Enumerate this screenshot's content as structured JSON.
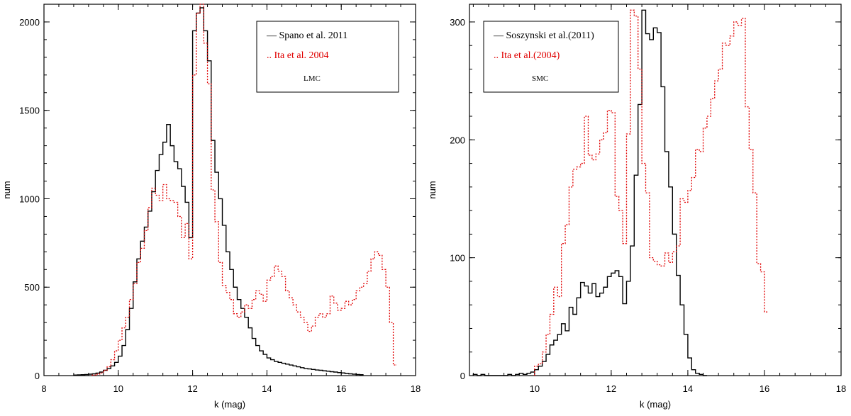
{
  "chart_data": [
    {
      "type": "line",
      "xlabel": "k (mag)",
      "ylabel": "num",
      "xlim": [
        8,
        18
      ],
      "ylim": [
        0,
        2100
      ],
      "xticks": [
        8,
        10,
        12,
        14,
        16,
        18
      ],
      "yticks": [
        0,
        500,
        1000,
        1500,
        2000
      ],
      "legend_position": "top-right",
      "legend_note": "LMC",
      "grid": false,
      "series": [
        {
          "name": "Spano et al. 2011",
          "color": "#000000",
          "style": "solid",
          "marker": "—",
          "bin_width": 0.1,
          "x_start": 8.8,
          "values": [
            3,
            4,
            5,
            6,
            8,
            10,
            14,
            20,
            30,
            40,
            55,
            75,
            110,
            170,
            260,
            380,
            530,
            660,
            760,
            840,
            930,
            1040,
            1160,
            1250,
            1320,
            1420,
            1300,
            1210,
            1170,
            1070,
            980,
            780,
            1950,
            2050,
            2080,
            1950,
            1780,
            1330,
            1150,
            1000,
            850,
            700,
            600,
            500,
            430,
            380,
            330,
            270,
            210,
            170,
            140,
            120,
            100,
            90,
            80,
            75,
            70,
            65,
            60,
            55,
            50,
            45,
            40,
            38,
            35,
            32,
            30,
            27,
            25,
            22,
            20,
            17,
            15,
            12,
            10,
            8,
            6,
            5
          ]
        },
        {
          "name": "Ita et al. 2004",
          "color": "#e00000",
          "style": "dotted",
          "marker": "..",
          "bin_width": 0.1,
          "x_start": 9.3,
          "values": [
            3,
            8,
            15,
            30,
            50,
            90,
            140,
            200,
            270,
            330,
            430,
            520,
            640,
            720,
            820,
            950,
            1060,
            1020,
            990,
            1080,
            1000,
            990,
            980,
            900,
            780,
            860,
            660,
            1700,
            2050,
            2100,
            1880,
            1650,
            1050,
            870,
            640,
            510,
            470,
            430,
            350,
            330,
            360,
            400,
            380,
            430,
            480,
            460,
            420,
            540,
            560,
            620,
            590,
            560,
            480,
            440,
            400,
            360,
            330,
            300,
            250,
            280,
            330,
            350,
            330,
            350,
            450,
            410,
            370,
            380,
            420,
            400,
            430,
            480,
            500,
            520,
            590,
            660,
            700,
            680,
            600,
            500,
            300,
            60
          ]
        }
      ]
    },
    {
      "type": "line",
      "xlabel": "k (mag)",
      "ylabel": "num",
      "xlim": [
        8.3,
        18
      ],
      "ylim": [
        0,
        315
      ],
      "xticks": [
        10,
        12,
        14,
        16,
        18
      ],
      "yticks": [
        0,
        100,
        200,
        300
      ],
      "legend_position": "top-left",
      "legend_note": "SMC",
      "grid": false,
      "series": [
        {
          "name": "Soszynski et al.(2011)",
          "color": "#000000",
          "style": "solid",
          "marker": "—",
          "bin_width": 0.1,
          "x_start": 8.4,
          "values": [
            1,
            0,
            1,
            0,
            0,
            0,
            0,
            0,
            0,
            1,
            0,
            1,
            2,
            1,
            2,
            3,
            5,
            8,
            12,
            18,
            26,
            30,
            35,
            44,
            38,
            58,
            52,
            66,
            79,
            76,
            70,
            78,
            67,
            70,
            75,
            84,
            87,
            89,
            84,
            61,
            80,
            110,
            170,
            230,
            310,
            290,
            285,
            295,
            291,
            245,
            190,
            160,
            120,
            85,
            60,
            35,
            15,
            5,
            2,
            1,
            0
          ]
        },
        {
          "name": "Ita et al.(2004)",
          "color": "#e00000",
          "style": "dotted",
          "marker": "..",
          "bin_width": 0.1,
          "x_start": 10.0,
          "values": [
            8,
            10,
            20,
            35,
            52,
            75,
            67,
            112,
            128,
            160,
            175,
            177,
            180,
            220,
            187,
            183,
            188,
            200,
            206,
            225,
            223,
            152,
            140,
            112,
            205,
            310,
            305,
            260,
            180,
            155,
            100,
            97,
            94,
            93,
            104,
            96,
            105,
            110,
            150,
            147,
            157,
            168,
            192,
            190,
            210,
            220,
            235,
            250,
            260,
            282,
            280,
            288,
            300,
            297,
            303,
            228,
            192,
            155,
            95,
            88,
            54
          ]
        }
      ]
    }
  ]
}
